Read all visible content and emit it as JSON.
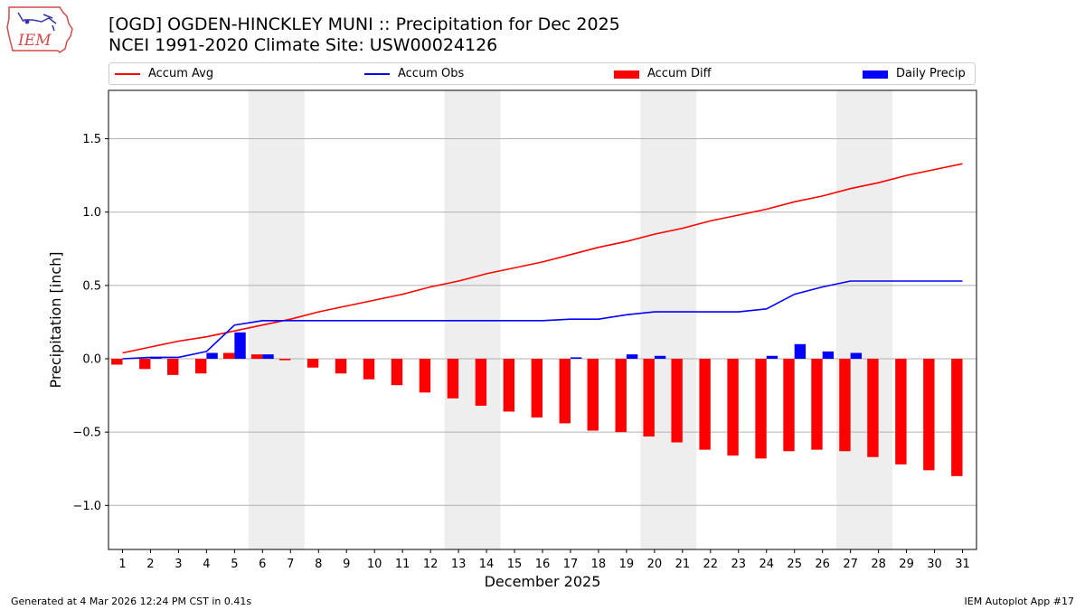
{
  "header": {
    "title_line1": "[OGD] OGDEN-HINCKLEY MUNI :: Precipitation for Dec 2025",
    "title_line2": "NCEI 1991-2020 Climate Site: USW00024126",
    "logo_text": "IEM"
  },
  "footer": {
    "left": "Generated at 4 Mar 2026 12:24 PM CST in 0.41s",
    "right": "IEM Autoplot App #17"
  },
  "colors": {
    "accum_avg": "#ff0000",
    "accum_obs": "#0000ff",
    "accum_diff": "#ff0000",
    "daily_precip": "#0000ff",
    "weekend_shade": "#eeeeee",
    "grid": "#b0b0b0"
  },
  "legend": {
    "placement": "top",
    "items": [
      {
        "label": "Accum Avg",
        "kind": "line",
        "color": "#ff0000"
      },
      {
        "label": "Accum Obs",
        "kind": "line",
        "color": "#0000ff"
      },
      {
        "label": "Accum Diff",
        "kind": "bar",
        "color": "#ff0000"
      },
      {
        "label": "Daily Precip",
        "kind": "bar",
        "color": "#0000ff"
      }
    ]
  },
  "chart_data": {
    "type": "bar",
    "xlabel": "December 2025",
    "ylabel": "Precipitation [inch]",
    "ylim": [
      -1.3,
      1.83
    ],
    "xlim": [
      0.5,
      31.5
    ],
    "yticks": [
      -1.0,
      -0.5,
      0.0,
      0.5,
      1.0,
      1.5
    ],
    "ytick_labels": [
      "−1.0",
      "−0.5",
      "0.0",
      "0.5",
      "1.0",
      "1.5"
    ],
    "grid": "horizontal",
    "categories": [
      "1",
      "2",
      "3",
      "4",
      "5",
      "6",
      "7",
      "8",
      "9",
      "10",
      "11",
      "12",
      "13",
      "14",
      "15",
      "16",
      "17",
      "18",
      "19",
      "20",
      "21",
      "22",
      "23",
      "24",
      "25",
      "26",
      "27",
      "28",
      "29",
      "30",
      "31"
    ],
    "weekend_spans": [
      [
        6,
        7
      ],
      [
        13,
        14
      ],
      [
        20,
        21
      ],
      [
        27,
        28
      ]
    ],
    "series": [
      {
        "name": "Accum Avg",
        "kind": "line",
        "values": [
          0.04,
          0.08,
          0.12,
          0.15,
          0.19,
          0.23,
          0.27,
          0.32,
          0.36,
          0.4,
          0.44,
          0.49,
          0.53,
          0.58,
          0.62,
          0.66,
          0.71,
          0.76,
          0.8,
          0.85,
          0.89,
          0.94,
          0.98,
          1.02,
          1.07,
          1.11,
          1.16,
          1.2,
          1.25,
          1.29,
          1.33
        ]
      },
      {
        "name": "Accum Obs",
        "kind": "line",
        "values": [
          0.0,
          0.01,
          0.01,
          0.05,
          0.23,
          0.26,
          0.26,
          0.26,
          0.26,
          0.26,
          0.26,
          0.26,
          0.26,
          0.26,
          0.26,
          0.26,
          0.27,
          0.27,
          0.3,
          0.32,
          0.32,
          0.32,
          0.32,
          0.34,
          0.44,
          0.49,
          0.53,
          0.53,
          0.53,
          0.53,
          0.53
        ]
      },
      {
        "name": "Accum Diff",
        "kind": "bar",
        "values": [
          -0.04,
          -0.07,
          -0.11,
          -0.1,
          0.04,
          0.03,
          -0.01,
          -0.06,
          -0.1,
          -0.14,
          -0.18,
          -0.23,
          -0.27,
          -0.32,
          -0.36,
          -0.4,
          -0.44,
          -0.49,
          -0.5,
          -0.53,
          -0.57,
          -0.62,
          -0.66,
          -0.68,
          -0.63,
          -0.62,
          -0.63,
          -0.67,
          -0.72,
          -0.76,
          -0.8
        ]
      },
      {
        "name": "Daily Precip",
        "kind": "bar",
        "values": [
          0.0,
          0.01,
          0.0,
          0.04,
          0.18,
          0.03,
          0.0,
          0.0,
          0.0,
          0.0,
          0.0,
          0.0,
          0.0,
          0.0,
          0.0,
          0.0,
          0.01,
          0.0,
          0.03,
          0.02,
          0.0,
          0.0,
          0.0,
          0.02,
          0.1,
          0.05,
          0.04,
          0.0,
          0.0,
          0.0,
          0.0
        ]
      }
    ]
  }
}
